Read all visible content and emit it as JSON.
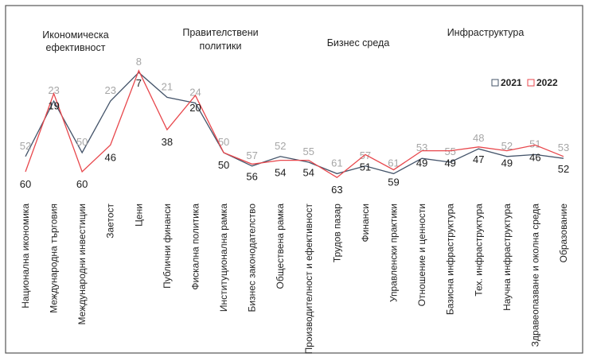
{
  "chart_data": {
    "type": "line",
    "title": "",
    "groups": [
      "Икономическа ефективност",
      [
        "Правителствени",
        "политики"
      ],
      "Бизнес среда",
      "Инфраструктура"
    ],
    "groups_flat": [
      "Икономическа",
      "ефективност",
      "Правителствени",
      "политики",
      "Бизнес среда",
      "Инфраструктура"
    ],
    "categories": [
      "Национална икономика",
      "Международна търговия",
      "Международни инвестиции",
      "Заетост",
      "Цени",
      "Публични финанси",
      "Фискална политика",
      "Институционална рамка",
      "Бизнес законодателство",
      "Обществена рамка",
      "Производителност и ефективност",
      "Трудов пазар",
      "Финанси",
      "Управленски практики",
      "Отношение и ценности",
      "Базисна инфраструктура",
      "Тех. инфраструктура",
      "Научна инфраструктура",
      "Здравеопазване и околна среда",
      "Образование"
    ],
    "series": [
      {
        "name": "2021",
        "color": "#44546a",
        "label_color": "#a6a6a6",
        "values": [
          52,
          23,
          50,
          23,
          8,
          21,
          24,
          50,
          57,
          52,
          55,
          61,
          57,
          61,
          53,
          55,
          48,
          52,
          51,
          53
        ]
      },
      {
        "name": "2022",
        "color": "#e8474c",
        "label_color": "#1a1a1a",
        "values": [
          60,
          19,
          60,
          46,
          7,
          38,
          20,
          50,
          56,
          54,
          54,
          63,
          51,
          59,
          49,
          49,
          47,
          49,
          46,
          52
        ]
      }
    ],
    "ylim": [
      0,
      65
    ],
    "y_inverted": true,
    "grid": false,
    "legend": "top-right"
  }
}
